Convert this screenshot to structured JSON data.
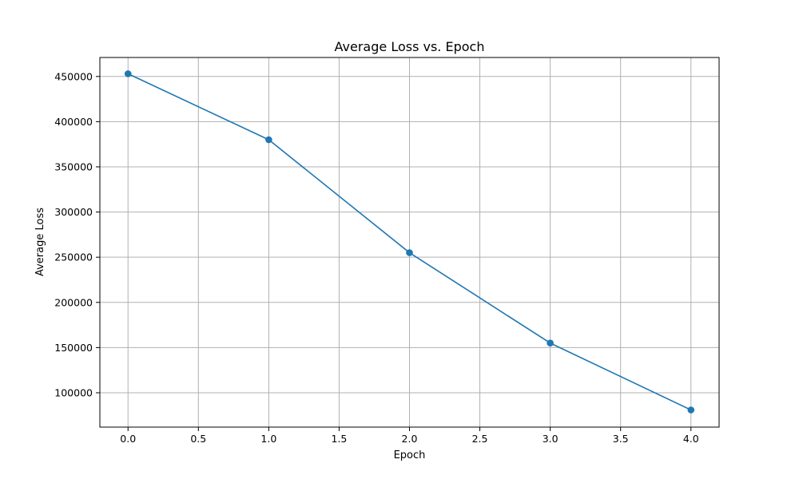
{
  "chart_data": {
    "type": "line",
    "title": "Average Loss vs. Epoch",
    "xlabel": "Epoch",
    "ylabel": "Average Loss",
    "xlim": [
      -0.2,
      4.2
    ],
    "ylim": [
      62000,
      471000
    ],
    "xticks": [
      0.0,
      0.5,
      1.0,
      1.5,
      2.0,
      2.5,
      3.0,
      3.5,
      4.0
    ],
    "xtick_labels": [
      "0.0",
      "0.5",
      "1.0",
      "1.5",
      "2.0",
      "2.5",
      "3.0",
      "3.5",
      "4.0"
    ],
    "yticks": [
      100000,
      150000,
      200000,
      250000,
      300000,
      350000,
      400000,
      450000
    ],
    "ytick_labels": [
      "100000",
      "150000",
      "200000",
      "250000",
      "300000",
      "350000",
      "400000",
      "450000"
    ],
    "grid": true,
    "series": [
      {
        "x": [
          0,
          1,
          2,
          3,
          4
        ],
        "y": [
          453000,
          380000,
          255000,
          155000,
          81000
        ],
        "color": "#1f77b4",
        "marker": "circle"
      }
    ]
  }
}
